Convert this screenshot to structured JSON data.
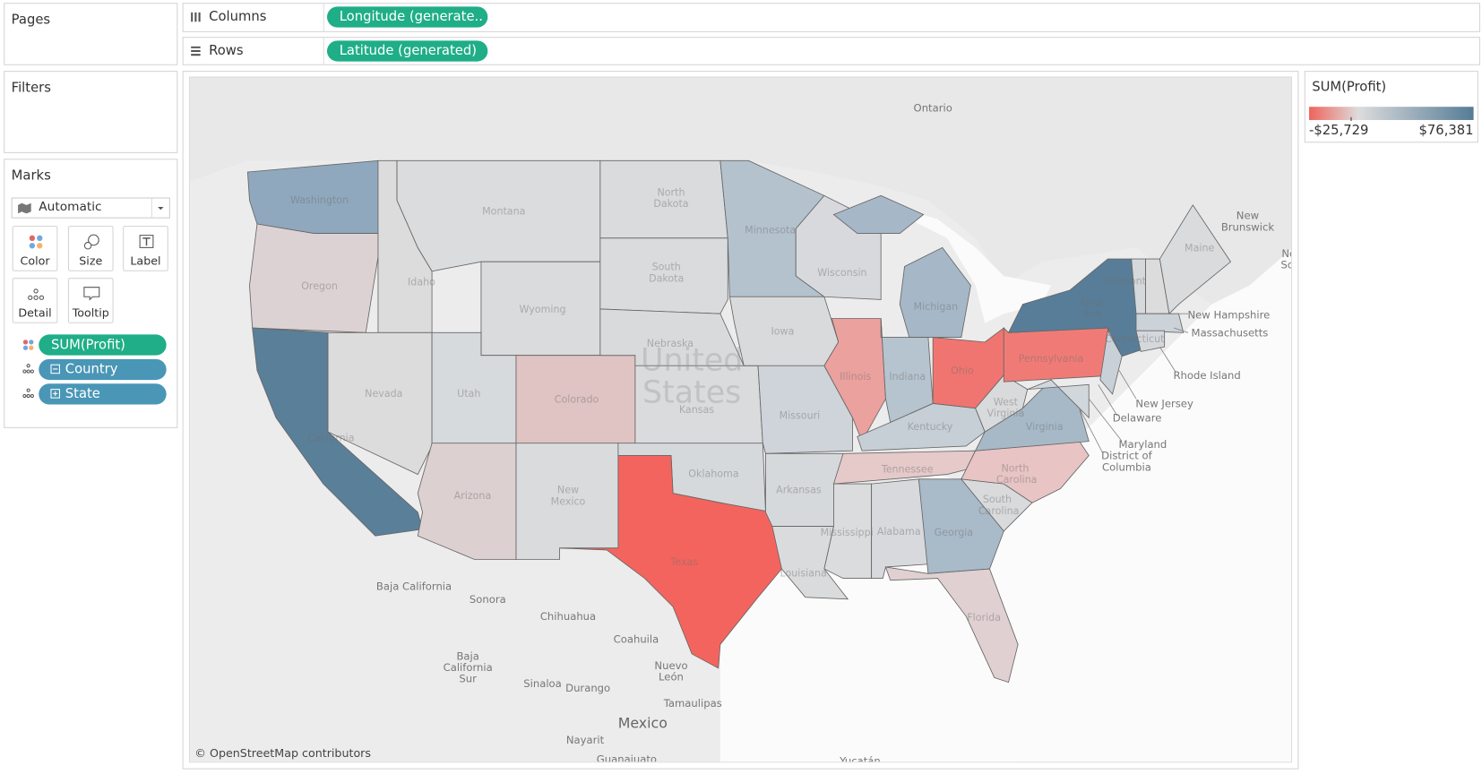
{
  "shelves": {
    "pages": "Pages",
    "columns": {
      "label": "Columns",
      "pill": "Longitude (generate.."
    },
    "rows": {
      "label": "Rows",
      "pill": "Latitude (generated)"
    }
  },
  "filters": {
    "title": "Filters"
  },
  "marks": {
    "title": "Marks",
    "mark_type": "Automatic",
    "buttons": [
      "Color",
      "Size",
      "Label",
      "Detail",
      "Tooltip"
    ],
    "pills": [
      "SUM(Profit)",
      "Country",
      "State"
    ]
  },
  "legend": {
    "title": "SUM(Profit)",
    "min_label": "-$25,729",
    "max_label": "$76,381"
  },
  "map": {
    "labels": [
      "Ontario",
      "New Brunswick",
      "Nova Scotia",
      "Washington",
      "Oregon",
      "California",
      "Nevada",
      "Idaho",
      "Montana",
      "Wyoming",
      "Utah",
      "Arizona",
      "Colorado",
      "New Mexico",
      "North Dakota",
      "South Dakota",
      "Nebraska",
      "Kansas",
      "Oklahoma",
      "Texas",
      "Minnesota",
      "Iowa",
      "Missouri",
      "Arkansas",
      "Louisiana",
      "Wisconsin",
      "Illinois",
      "Michigan",
      "Indiana",
      "Ohio",
      "Kentucky",
      "Tennessee",
      "Mississippi",
      "Alabama",
      "Georgia",
      "Florida",
      "South Carolina",
      "North Carolina",
      "Virginia",
      "West Virginia",
      "Pennsylvania",
      "New York",
      "Vermont",
      "Maine",
      "Connecticut",
      "New Hampshire",
      "Massachusetts",
      "Rhode Island",
      "New Jersey",
      "Delaware",
      "Maryland",
      "District of Columbia",
      "Baja California",
      "Sonora",
      "Chihuahua",
      "Coahuila",
      "Baja California Sur",
      "Nuevo León",
      "Sinaloa",
      "Durango",
      "Tamaulipas",
      "Nayarit",
      "Guanajuato",
      "Yucatán",
      "United States",
      "Mexico"
    ],
    "attribution": "© OpenStreetMap contributors"
  }
}
